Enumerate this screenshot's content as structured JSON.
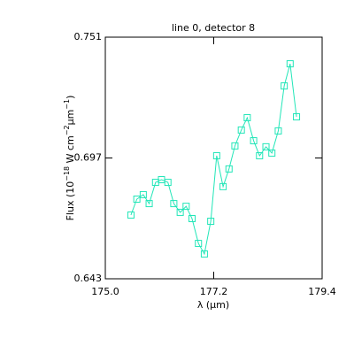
{
  "chart_data": {
    "type": "line",
    "title": "line 0, detector 8",
    "xlabel": "λ (μm)",
    "ylabel": [
      {
        "text": "Flux (10"
      },
      {
        "text": "−18",
        "sup": true
      },
      {
        "text": " W cm"
      },
      {
        "text": "−2",
        "sup": true
      },
      {
        "text": "μm"
      },
      {
        "text": "−1",
        "sup": true
      },
      {
        "text": ")"
      }
    ],
    "series": [
      {
        "color": "#22e6b8",
        "x": [
          175.52,
          175.64,
          175.77,
          175.89,
          176.02,
          176.14,
          176.27,
          176.39,
          176.52,
          176.64,
          176.76,
          176.89,
          177.01,
          177.14,
          177.26,
          177.39,
          177.51,
          177.63,
          177.76,
          177.88,
          178.01,
          178.13,
          178.26,
          178.38,
          178.51,
          178.63,
          178.75,
          178.88
        ],
        "values": [
          0.6715,
          0.6786,
          0.6806,
          0.6766,
          0.6861,
          0.6873,
          0.6861,
          0.6766,
          0.6727,
          0.6754,
          0.6699,
          0.6588,
          0.6541,
          0.6687,
          0.698,
          0.6842,
          0.6921,
          0.7024,
          0.7095,
          0.715,
          0.7047,
          0.698,
          0.702,
          0.6992,
          0.7091,
          0.7292,
          0.7391,
          0.7154
        ]
      }
    ],
    "xlim": [
      175.0,
      179.4
    ],
    "xticks": [
      {
        "value": 175.0,
        "label": "175.0"
      },
      177.2,
      179.4
    ],
    "ylim": [
      0.643,
      0.751
    ],
    "yticks": [
      0.643,
      0.697,
      0.751
    ],
    "marker": "square"
  }
}
